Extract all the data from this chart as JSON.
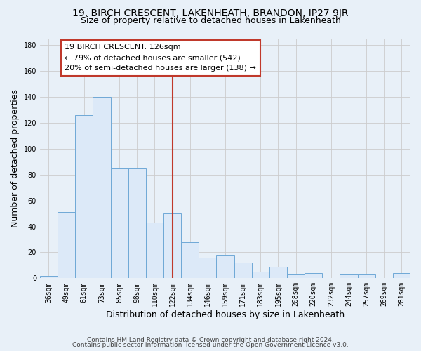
{
  "title": "19, BIRCH CRESCENT, LAKENHEATH, BRANDON, IP27 9JR",
  "subtitle": "Size of property relative to detached houses in Lakenheath",
  "xlabel": "Distribution of detached houses by size in Lakenheath",
  "ylabel": "Number of detached properties",
  "bar_labels": [
    "36sqm",
    "49sqm",
    "61sqm",
    "73sqm",
    "85sqm",
    "98sqm",
    "110sqm",
    "122sqm",
    "134sqm",
    "146sqm",
    "159sqm",
    "171sqm",
    "183sqm",
    "195sqm",
    "208sqm",
    "220sqm",
    "232sqm",
    "244sqm",
    "257sqm",
    "269sqm",
    "281sqm"
  ],
  "bar_heights": [
    2,
    51,
    126,
    140,
    85,
    85,
    43,
    50,
    28,
    16,
    18,
    12,
    5,
    9,
    3,
    4,
    0,
    3,
    3,
    0,
    4
  ],
  "bar_color": "#dce9f8",
  "bar_edge_color": "#6fa8d6",
  "vline_x": 7.0,
  "vline_color": "#c0392b",
  "annotation_title": "19 BIRCH CRESCENT: 126sqm",
  "annotation_line1": "← 79% of detached houses are smaller (542)",
  "annotation_line2": "20% of semi-detached houses are larger (138) →",
  "annotation_box_edge": "#c0392b",
  "ylim": [
    0,
    185
  ],
  "yticks": [
    0,
    20,
    40,
    60,
    80,
    100,
    120,
    140,
    160,
    180
  ],
  "footer1": "Contains HM Land Registry data © Crown copyright and database right 2024.",
  "footer2": "Contains public sector information licensed under the Open Government Licence v3.0.",
  "fig_bg_color": "#e8f0f8",
  "plot_bg_color": "#e8f0f8",
  "grid_color": "#cccccc",
  "title_fontsize": 10,
  "subtitle_fontsize": 9,
  "axis_label_fontsize": 9,
  "tick_fontsize": 7,
  "footer_fontsize": 6.5,
  "ann_fontsize": 8
}
